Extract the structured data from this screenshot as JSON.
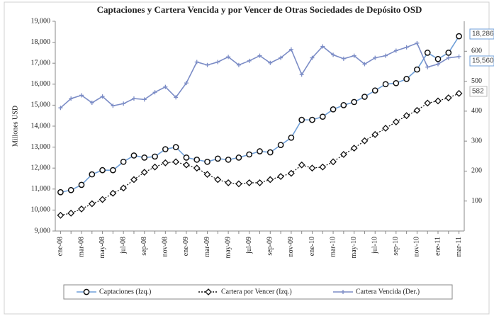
{
  "chart_data": {
    "type": "line",
    "title": "Captaciones y Cartera Vencida y por Vencer de Otras Sociedades de Depósito OSD",
    "y_label": "Millones USD",
    "categories": [
      "ene-08",
      null,
      "mar-08",
      null,
      "may-08",
      null,
      "jul-08",
      null,
      "sep-08",
      null,
      "nov-08",
      null,
      "ene-09",
      null,
      "mar-09",
      null,
      "may-09",
      null,
      "jul-09",
      null,
      "sep-09",
      null,
      "nov-09",
      null,
      "ene-10",
      null,
      "mar-10",
      null,
      "may-10",
      null,
      "jul-10",
      null,
      "sep-10",
      null,
      "nov-10",
      null,
      "ene-11",
      null,
      "mar-11"
    ],
    "ylim": [
      9000,
      19000
    ],
    "yticks": [
      {
        "value": 9000,
        "label": "9,000"
      },
      {
        "value": 10000,
        "label": "10,000"
      },
      {
        "value": 11000,
        "label": "11,000"
      },
      {
        "value": 12000,
        "label": "12,000"
      },
      {
        "value": 13000,
        "label": "13,000"
      },
      {
        "value": 14000,
        "label": "14,000"
      },
      {
        "value": 15000,
        "label": "15,000"
      },
      {
        "value": 16000,
        "label": "16,000"
      },
      {
        "value": 17000,
        "label": "17,000"
      },
      {
        "value": 18000,
        "label": "18,000"
      },
      {
        "value": 19000,
        "label": "19,000"
      }
    ],
    "y2lim": [
      0,
      700
    ],
    "y2ticks": [
      100,
      200,
      300,
      400,
      500,
      600
    ],
    "legend": "bottom",
    "series": [
      {
        "name": "Captaciones (Izq.)",
        "color": "#6f9fd8",
        "marker": "circle",
        "values": [
          10850,
          10950,
          11200,
          11700,
          11900,
          11900,
          12300,
          12600,
          12500,
          12550,
          12900,
          13000,
          12500,
          12400,
          12300,
          12450,
          12400,
          12500,
          12650,
          12800,
          12750,
          13100,
          13450,
          14300,
          14300,
          14450,
          14800,
          15000,
          15150,
          15400,
          15700,
          16000,
          16050,
          16250,
          16700,
          17500,
          17200,
          17500,
          18286
        ],
        "value_labels": [
          null,
          null,
          null,
          null,
          null,
          null,
          null,
          null,
          null,
          null,
          null,
          null,
          null,
          null,
          null,
          null,
          null,
          null,
          null,
          null,
          null,
          null,
          null,
          null,
          null,
          null,
          null,
          null,
          null,
          null,
          null,
          null,
          null,
          null,
          null,
          null,
          null,
          null,
          "18,286"
        ]
      },
      {
        "name": "Cartera por Vencer (Izq.)",
        "color": "#111111",
        "marker": "diamond",
        "values": [
          9750,
          9850,
          10050,
          10300,
          10500,
          10800,
          11050,
          11450,
          11800,
          12050,
          12250,
          12300,
          12150,
          12000,
          11700,
          11450,
          11300,
          11250,
          11300,
          11300,
          11450,
          11600,
          11750,
          12150,
          12000,
          12050,
          12300,
          12650,
          12950,
          13300,
          13600,
          13900,
          14200,
          14500,
          14750,
          15100,
          15200,
          15350,
          15560
        ],
        "value_labels": [
          null,
          null,
          null,
          null,
          null,
          null,
          null,
          null,
          null,
          null,
          null,
          null,
          null,
          null,
          null,
          null,
          null,
          null,
          null,
          null,
          null,
          null,
          null,
          null,
          null,
          null,
          null,
          null,
          null,
          null,
          null,
          null,
          null,
          null,
          null,
          null,
          null,
          null,
          "15,560"
        ]
      },
      {
        "name": "Cartera Vencida (Der.)",
        "color": "#7b8cc6",
        "marker": "plus",
        "axis": "y2",
        "values": [
          411,
          442,
          453,
          428,
          449,
          418,
          425,
          442,
          439,
          463,
          481,
          446,
          494,
          564,
          554,
          564,
          581,
          554,
          568,
          585,
          561,
          578,
          606,
          522,
          578,
          616,
          588,
          575,
          585,
          557,
          578,
          585,
          602,
          613,
          627,
          547,
          557,
          578,
          582
        ]
      }
    ]
  }
}
